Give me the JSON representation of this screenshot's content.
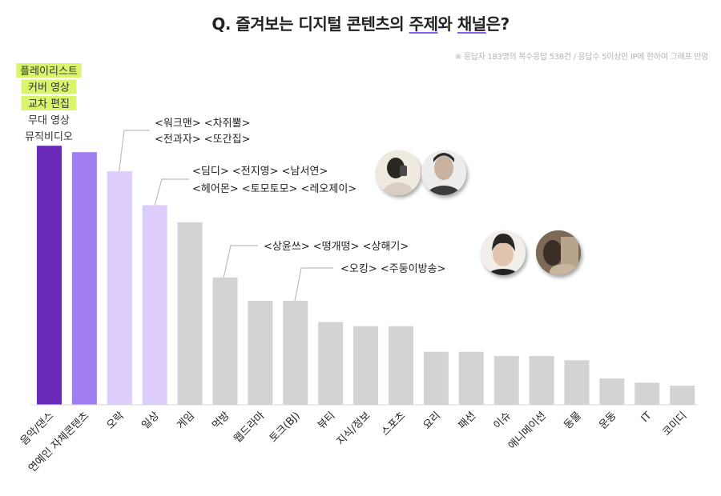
{
  "title": {
    "prefix": "Q. 즐겨보는 디지털 콘텐츠의 ",
    "topic": "주제",
    "mid": "와 ",
    "channel": "채널",
    "suffix": "은?"
  },
  "note": "※ 응답자 183명의 복수응답 538건 / 응답수 5이상인 IP에 한하여 그래프 반영",
  "music_list": [
    "플레이리스트",
    "커버 영상",
    "교차 편집",
    "무대 영상",
    "뮤직비디오"
  ],
  "music_highlighted": [
    true,
    true,
    true,
    false,
    false
  ],
  "callouts": [
    [
      "<워크맨> <차쥐뿔>",
      "<전과자> <또간집>"
    ],
    [
      "<딤디> <전지영> <남서연>",
      "<헤어몬> <토모토모> <레오제이>"
    ],
    [
      "<상윤쓰> <떵개떵> <상해기>"
    ],
    [
      "<오킹> <주둥이방송>"
    ]
  ],
  "colors": {
    "bar_top": "#6a2ab8",
    "bar_second": "#a07ef0",
    "bar_light": "#dccdfb",
    "bar_gray": "#d3d3d3",
    "highlight": "#d9f56b"
  },
  "chart_data": {
    "type": "bar",
    "categories": [
      "음악/댄스",
      "연예인 자체콘텐츠",
      "오락",
      "일상",
      "게임",
      "먹방",
      "웹드라마",
      "토크(BJ)",
      "뷰티",
      "지식/정보",
      "스포츠",
      "요리",
      "패션",
      "이슈",
      "애니메이션",
      "동물",
      "운동",
      "IT",
      "코미디"
    ],
    "values": [
      61,
      59.5,
      55,
      47,
      43,
      30,
      24.5,
      24.5,
      19.5,
      18.5,
      18.5,
      12.5,
      12.5,
      11.5,
      11.5,
      10.5,
      6.2,
      5.2,
      4.5
    ],
    "ylim": [
      0,
      65
    ],
    "grid": false,
    "legend": "none"
  }
}
